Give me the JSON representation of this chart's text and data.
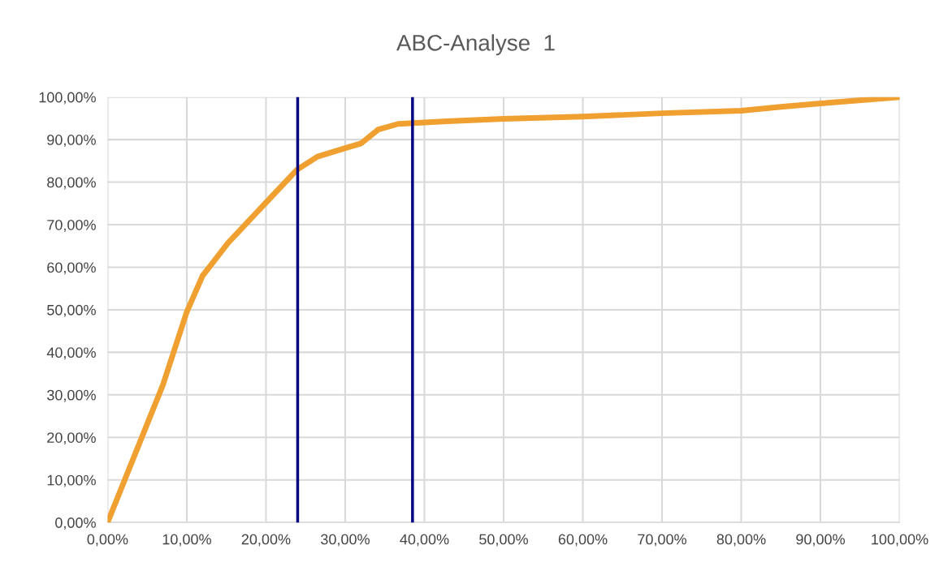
{
  "chart_data": {
    "type": "line",
    "title": "ABC-Analyse  1",
    "x": [
      0,
      7,
      10,
      12,
      15.2,
      20,
      23.9,
      26.5,
      30,
      32,
      34.2,
      36.7,
      42.9,
      50,
      60,
      70,
      80,
      85,
      90,
      100
    ],
    "series": [
      {
        "color": "#f0a030",
        "values": [
          0,
          32.4,
          49.5,
          58,
          65.7,
          75.2,
          82.9,
          86,
          88,
          89.1,
          92.4,
          93.7,
          94.3,
          94.9,
          95.4,
          96.2,
          96.8,
          97.7,
          98.5,
          100
        ]
      }
    ],
    "xlim": [
      0,
      100
    ],
    "ylim": [
      0,
      100
    ],
    "xticks": [
      {
        "value": 0,
        "label": "0,00%"
      },
      {
        "value": 10,
        "label": "10,00%"
      },
      {
        "value": 20,
        "label": "20,00%"
      },
      {
        "value": 30,
        "label": "30,00%"
      },
      {
        "value": 40,
        "label": "40,00%"
      },
      {
        "value": 50,
        "label": "50,00%"
      },
      {
        "value": 60,
        "label": "60,00%"
      },
      {
        "value": 70,
        "label": "70,00%"
      },
      {
        "value": 80,
        "label": "80,00%"
      },
      {
        "value": 90,
        "label": "90,00%"
      },
      {
        "value": 100,
        "label": "100,00%"
      }
    ],
    "yticks": [
      {
        "value": 0,
        "label": "0,00%"
      },
      {
        "value": 10,
        "label": "10,00%"
      },
      {
        "value": 20,
        "label": "20,00%"
      },
      {
        "value": 30,
        "label": "30,00%"
      },
      {
        "value": 40,
        "label": "40,00%"
      },
      {
        "value": 50,
        "label": "50,00%"
      },
      {
        "value": 60,
        "label": "60,00%"
      },
      {
        "value": 70,
        "label": "70,00%"
      },
      {
        "value": 80,
        "label": "80,00%"
      },
      {
        "value": 90,
        "label": "90,00%"
      },
      {
        "value": 100,
        "label": "100,00%"
      }
    ],
    "ref_lines": [
      {
        "axis": "x",
        "value": 24,
        "color": "#000080"
      },
      {
        "axis": "x",
        "value": 38.5,
        "color": "#000080"
      }
    ],
    "grid": true,
    "marker": "none",
    "line_style": "solid"
  }
}
